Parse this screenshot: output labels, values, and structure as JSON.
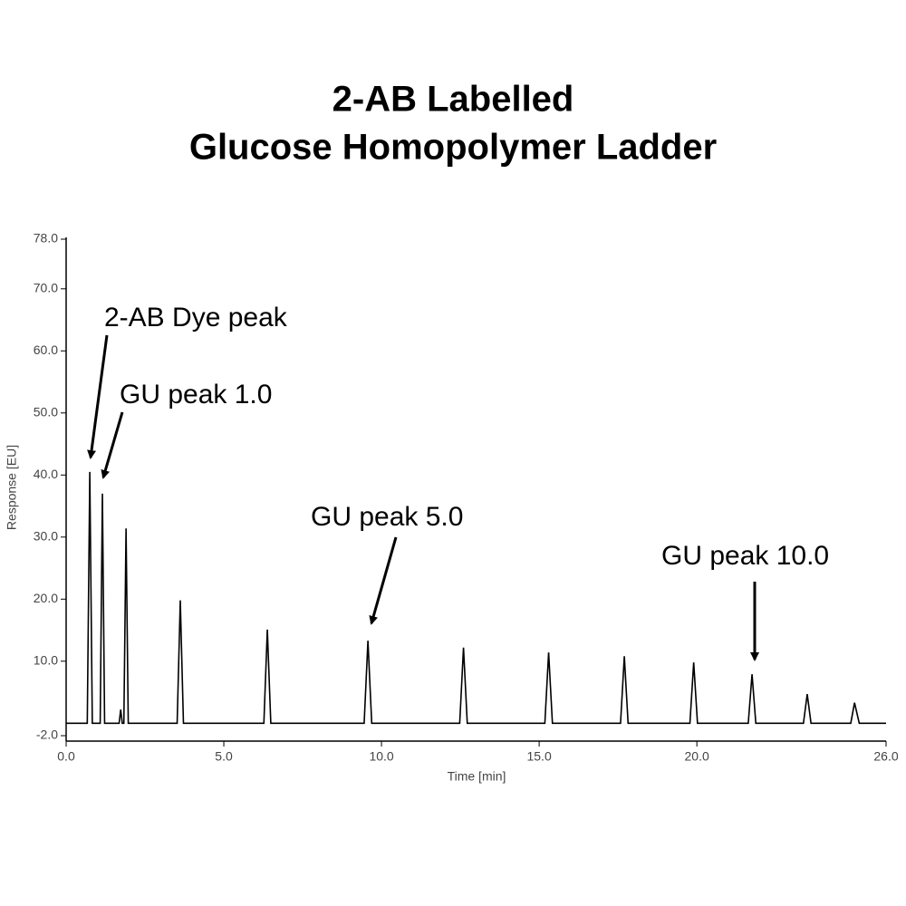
{
  "chart_data": {
    "type": "line",
    "title": [
      "2-AB Labelled",
      "Glucose Homopolymer Ladder"
    ],
    "x_label": "Time [min]",
    "y_label": "Response [EU]",
    "annotations": [
      "2-AB Dye peak",
      "GU peak 1.0",
      "GU peak 5.0",
      "GU peak 10.0"
    ],
    "x": [
      0,
      0.67,
      0.75,
      0.83,
      1.08,
      1.15,
      1.22,
      1.68,
      1.73,
      1.78,
      1.83,
      1.9,
      1.97,
      3.52,
      3.62,
      3.72,
      6.27,
      6.38,
      6.49,
      9.45,
      9.57,
      9.69,
      12.48,
      12.6,
      12.72,
      15.18,
      15.3,
      15.42,
      17.58,
      17.7,
      17.82,
      19.78,
      19.9,
      20.02,
      21.63,
      21.75,
      21.87,
      23.38,
      23.5,
      23.62,
      24.88,
      25.0,
      25.15,
      26.0
    ],
    "series": [
      {
        "color": "#000000",
        "values": [
          0,
          0,
          40.5,
          0,
          0,
          37,
          0,
          0,
          2.2,
          0,
          0,
          31.4,
          0,
          0,
          19.8,
          0,
          0,
          15.1,
          0,
          0,
          13.3,
          0,
          0,
          12.2,
          0,
          0,
          11.4,
          0,
          0,
          10.8,
          0,
          0,
          9.8,
          0,
          0,
          7.9,
          0,
          0,
          4.7,
          0,
          0,
          3.3,
          0,
          0
        ]
      }
    ],
    "xlim": [
      0,
      26
    ],
    "ylim": [
      -2,
      78
    ],
    "xticks": [
      {
        "value": 0,
        "label": "0.0"
      },
      {
        "value": 5,
        "label": "5.0"
      },
      {
        "value": 10,
        "label": "10.0"
      },
      {
        "value": 15,
        "label": "15.0"
      },
      {
        "value": 20,
        "label": "20.0"
      },
      {
        "value": 26,
        "label": "26.0"
      }
    ],
    "yticks": [
      {
        "value": -2,
        "label": "-2.0"
      },
      {
        "value": 10,
        "label": "10.0"
      },
      {
        "value": 20,
        "label": "20.0"
      },
      {
        "value": 30,
        "label": "30.0"
      },
      {
        "value": 40,
        "label": "40.0"
      },
      {
        "value": 50,
        "label": "50.0"
      },
      {
        "value": 60,
        "label": "60.0"
      },
      {
        "value": 70,
        "label": "70.0"
      },
      {
        "value": 78,
        "label": "78.0"
      }
    ]
  }
}
